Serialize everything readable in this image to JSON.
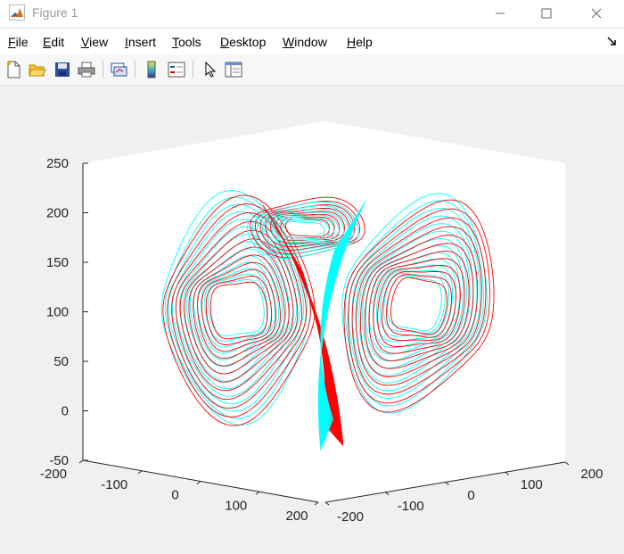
{
  "window": {
    "title": "Figure 1"
  },
  "menu": [
    "File",
    "Edit",
    "View",
    "Insert",
    "Tools",
    "Desktop",
    "Window",
    "Help"
  ],
  "toolbar": [
    "new-figure",
    "open-file",
    "save",
    "print",
    "link-plot",
    "insert-colorbar",
    "insert-legend",
    "edit-plot",
    "property-inspector"
  ],
  "chart_data": {
    "type": "line",
    "title": "",
    "xlabel": "",
    "ylabel": "",
    "zlabel": "",
    "series": [
      {
        "color": "#ff0000",
        "values": []
      },
      {
        "color": "#00ffff",
        "values": []
      }
    ],
    "z_ticks": [
      "250",
      "200",
      "150",
      "100",
      "50",
      "0",
      "-50"
    ],
    "x_ticks": [
      "-200",
      "-100",
      "0",
      "100",
      "200"
    ],
    "y_ticks": [
      "-200",
      "-100",
      "0",
      "100",
      "200"
    ],
    "zlim": [
      -50,
      250
    ],
    "xlim": [
      -200,
      200
    ],
    "ylim": [
      -200,
      200
    ],
    "view": "3d"
  }
}
